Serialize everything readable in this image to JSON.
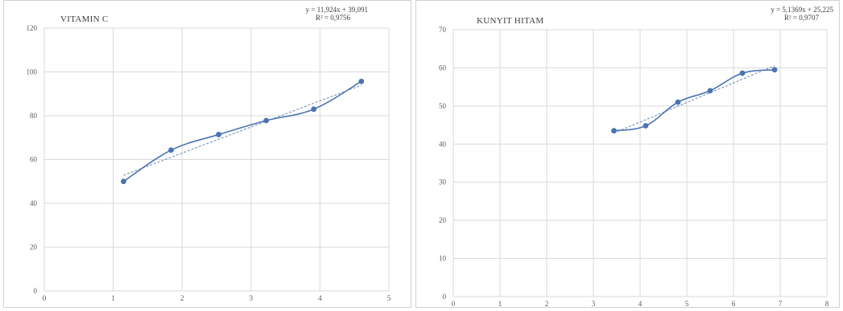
{
  "chart_data": [
    {
      "type": "scatter",
      "title": "VITAMIN C",
      "xlabel": "",
      "ylabel": "",
      "xlim": [
        0,
        5
      ],
      "ylim": [
        0,
        120
      ],
      "xticks": [
        0,
        1,
        2,
        3,
        4,
        5
      ],
      "yticks": [
        0,
        20,
        40,
        60,
        80,
        100,
        120
      ],
      "x_tick_labels": [
        "0",
        "1",
        "2",
        "3",
        "4",
        "5"
      ],
      "y_tick_labels": [
        "0",
        "20",
        "40",
        "60",
        "80",
        "100",
        "120"
      ],
      "grid": true,
      "series": [
        {
          "x": [
            1.15,
            1.84,
            2.53,
            3.22,
            3.91,
            4.6
          ],
          "y": [
            50,
            64.3,
            71.4,
            77.8,
            83,
            95.7
          ],
          "smooth": true,
          "color": "#4a74b4"
        }
      ],
      "trendline": {
        "slope": 11.924,
        "intercept": 39.091,
        "x_range": [
          1.15,
          4.6
        ],
        "equation": "y = 11,924x + 39,091",
        "r2_text": "R² = 0,9756",
        "color": "#4a74b4"
      }
    },
    {
      "type": "scatter",
      "title": "KUNYIT HITAM",
      "xlabel": "",
      "ylabel": "",
      "xlim": [
        0,
        8
      ],
      "ylim": [
        0,
        70
      ],
      "xticks": [
        0,
        1,
        2,
        3,
        4,
        5,
        6,
        7,
        8
      ],
      "yticks": [
        0,
        10,
        20,
        30,
        40,
        50,
        60,
        70
      ],
      "x_tick_labels": [
        "0",
        "1",
        "2",
        "3",
        "4",
        "5",
        "6",
        "7",
        "8"
      ],
      "y_tick_labels": [
        "0",
        "10",
        "20",
        "30",
        "40",
        "50",
        "60",
        "70"
      ],
      "grid": true,
      "series": [
        {
          "x": [
            3.44,
            4.12,
            4.81,
            5.5,
            6.19,
            6.88
          ],
          "y": [
            43.5,
            44.8,
            51,
            54,
            58.6,
            59.5
          ],
          "smooth": true,
          "color": "#4a74b4"
        }
      ],
      "trendline": {
        "slope": 5.1369,
        "intercept": 25.225,
        "x_range": [
          3.44,
          6.88
        ],
        "equation": "y = 5,1369x + 25,225",
        "r2_text": "R² = 0,9707",
        "color": "#4a74b4"
      }
    }
  ]
}
